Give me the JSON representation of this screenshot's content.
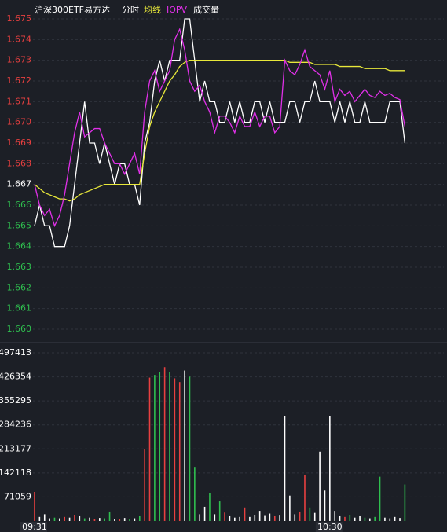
{
  "chart_data": {
    "type": "line",
    "title": "沪深300ETF易方达",
    "categories": [
      "09:31",
      null,
      null,
      null,
      null,
      null,
      null,
      null,
      null,
      null,
      null,
      null,
      null,
      null,
      null,
      null,
      null,
      null,
      null,
      null,
      null,
      null,
      null,
      null,
      null,
      null,
      null,
      null,
      null,
      null,
      null,
      null,
      null,
      null,
      null,
      null,
      null,
      null,
      null,
      null,
      null,
      null,
      null,
      null,
      null,
      null,
      null,
      null,
      null,
      null,
      null,
      null,
      null,
      null,
      null,
      null,
      null,
      null,
      null,
      "10:30",
      null,
      null,
      null,
      null,
      null,
      null,
      null,
      null,
      null,
      null,
      null,
      null,
      null,
      null,
      null
    ],
    "series": [
      {
        "name": "分时",
        "color": "#ffffff",
        "values": [
          1.665,
          1.666,
          1.665,
          1.665,
          1.664,
          1.664,
          1.664,
          1.665,
          1.667,
          1.669,
          1.671,
          1.669,
          1.669,
          1.668,
          1.669,
          1.668,
          1.667,
          1.668,
          1.668,
          1.667,
          1.667,
          1.666,
          1.669,
          1.67,
          1.672,
          1.673,
          1.672,
          1.673,
          1.673,
          1.673,
          1.675,
          1.675,
          1.673,
          1.671,
          1.672,
          1.671,
          1.671,
          1.67,
          1.67,
          1.671,
          1.67,
          1.671,
          1.67,
          1.67,
          1.671,
          1.671,
          1.67,
          1.671,
          1.67,
          1.67,
          1.67,
          1.671,
          1.671,
          1.67,
          1.671,
          1.671,
          1.672,
          1.671,
          1.671,
          1.671,
          1.67,
          1.671,
          1.67,
          1.671,
          1.67,
          1.67,
          1.671,
          1.67,
          1.67,
          1.67,
          1.67,
          1.671,
          1.671,
          1.671,
          1.669
        ]
      },
      {
        "name": "均线",
        "color": "#e8e83a",
        "values": [
          1.667,
          1.6668,
          1.6666,
          1.6665,
          1.6664,
          1.6663,
          1.6663,
          1.6662,
          1.6663,
          1.6665,
          1.6666,
          1.6667,
          1.6668,
          1.6669,
          1.667,
          1.667,
          1.667,
          1.667,
          1.667,
          1.667,
          1.667,
          1.667,
          1.6685,
          1.6698,
          1.6705,
          1.671,
          1.6715,
          1.672,
          1.6723,
          1.6727,
          1.6729,
          1.673,
          1.673,
          1.673,
          1.673,
          1.673,
          1.673,
          1.673,
          1.673,
          1.673,
          1.673,
          1.673,
          1.673,
          1.673,
          1.673,
          1.673,
          1.673,
          1.673,
          1.673,
          1.673,
          1.673,
          1.6729,
          1.6729,
          1.6729,
          1.6729,
          1.6729,
          1.6728,
          1.6728,
          1.6728,
          1.6728,
          1.6728,
          1.6727,
          1.6727,
          1.6727,
          1.6727,
          1.6727,
          1.6726,
          1.6726,
          1.6726,
          1.6726,
          1.6726,
          1.6725,
          1.6725,
          1.6725,
          1.6725
        ]
      },
      {
        "name": "IOPV",
        "color": "#e030e8",
        "values": [
          1.667,
          1.666,
          1.6655,
          1.6658,
          1.665,
          1.6655,
          1.6665,
          1.668,
          1.6695,
          1.6705,
          1.6693,
          1.6695,
          1.6697,
          1.6697,
          1.669,
          1.6685,
          1.668,
          1.668,
          1.6675,
          1.668,
          1.6685,
          1.6675,
          1.6705,
          1.672,
          1.6725,
          1.6715,
          1.672,
          1.6725,
          1.674,
          1.6745,
          1.6735,
          1.672,
          1.6715,
          1.6718,
          1.671,
          1.6705,
          1.6695,
          1.6703,
          1.6703,
          1.67,
          1.6695,
          1.6703,
          1.6698,
          1.6698,
          1.6705,
          1.6698,
          1.6703,
          1.6703,
          1.6695,
          1.6698,
          1.673,
          1.6725,
          1.6723,
          1.6728,
          1.6735,
          1.6727,
          1.6725,
          1.6723,
          1.6716,
          1.6725,
          1.671,
          1.6716,
          1.6713,
          1.6715,
          1.671,
          1.6713,
          1.6716,
          1.6713,
          1.6712,
          1.6715,
          1.6713,
          1.6714,
          1.6712,
          1.6711,
          1.6698
        ]
      }
    ],
    "ylim": [
      1.66,
      1.675
    ],
    "yticks": [
      1.675,
      1.674,
      1.673,
      1.672,
      1.671,
      {
        "value": 1.67,
        "label": "1.670"
      },
      1.669,
      1.668,
      1.667,
      1.666,
      1.665,
      1.664,
      1.663,
      1.662,
      1.661,
      {
        "value": 1.66,
        "label": "1.660"
      }
    ],
    "ytick_colors": [
      "#e84040",
      "#e84040",
      "#e84040",
      "#e84040",
      "#e84040",
      "#e84040",
      "#e84040",
      "#e84040",
      "#ffffff",
      "#2fbf4f",
      "#2fbf4f",
      "#2fbf4f",
      "#2fbf4f",
      "#2fbf4f",
      "#2fbf4f",
      "#2fbf4f"
    ],
    "grid": true,
    "volume": {
      "type": "bar",
      "name": "成交量",
      "values": [
        86000,
        12000,
        20000,
        8000,
        10000,
        8000,
        12000,
        10000,
        18000,
        14000,
        8000,
        10000,
        6000,
        9000,
        8000,
        28000,
        6000,
        7000,
        9000,
        6000,
        8000,
        14000,
        213000,
        424000,
        432000,
        440000,
        455000,
        441000,
        422000,
        411000,
        445000,
        427000,
        160000,
        20000,
        42000,
        82000,
        20000,
        58000,
        25000,
        14000,
        10000,
        12000,
        40000,
        12000,
        18000,
        30000,
        15000,
        22000,
        14000,
        16000,
        310000,
        75000,
        20000,
        28000,
        136000,
        40000,
        24000,
        205000,
        90000,
        310000,
        30000,
        14000,
        12000,
        18000,
        10000,
        14000,
        10000,
        8000,
        12000,
        131000,
        10000,
        8000,
        12000,
        9000,
        108000
      ],
      "colors": [
        "#e84040",
        "#ffffff",
        "#ffffff",
        "#ffffff",
        "#2fbf4f",
        "#ffffff",
        "#e84040",
        "#ffffff",
        "#e84040",
        "#ffffff",
        "#2fbf4f",
        "#ffffff",
        "#e84040",
        "#ffffff",
        "#2fbf4f",
        "#2fbf4f",
        "#ffffff",
        "#e84040",
        "#ffffff",
        "#2fbf4f",
        "#ffffff",
        "#2fbf4f",
        "#e84040",
        "#e84040",
        "#2fbf4f",
        "#2fbf4f",
        "#e84040",
        "#2fbf4f",
        "#e84040",
        "#e84040",
        "#ffffff",
        "#2fbf4f",
        "#2fbf4f",
        "#ffffff",
        "#ffffff",
        "#2fbf4f",
        "#ffffff",
        "#2fbf4f",
        "#e84040",
        "#ffffff",
        "#ffffff",
        "#ffffff",
        "#e84040",
        "#ffffff",
        "#ffffff",
        "#ffffff",
        "#ffffff",
        "#ffffff",
        "#e84040",
        "#ffffff",
        "#ffffff",
        "#ffffff",
        "#ffffff",
        "#e84040",
        "#e84040",
        "#2fbf4f",
        "#ffffff",
        "#ffffff",
        "#ffffff",
        "#ffffff",
        "#ffffff",
        "#ffffff",
        "#e84040",
        "#2fbf4f",
        "#ffffff",
        "#ffffff",
        "#2fbf4f",
        "#ffffff",
        "#2fbf4f",
        "#2fbf4f",
        "#ffffff",
        "#ffffff",
        "#ffffff",
        "#ffffff",
        "#2fbf4f"
      ],
      "ylim": [
        0,
        497413
      ],
      "yticks": [
        497413,
        426354,
        355295,
        284236,
        213177,
        142118,
        71059
      ]
    }
  }
}
